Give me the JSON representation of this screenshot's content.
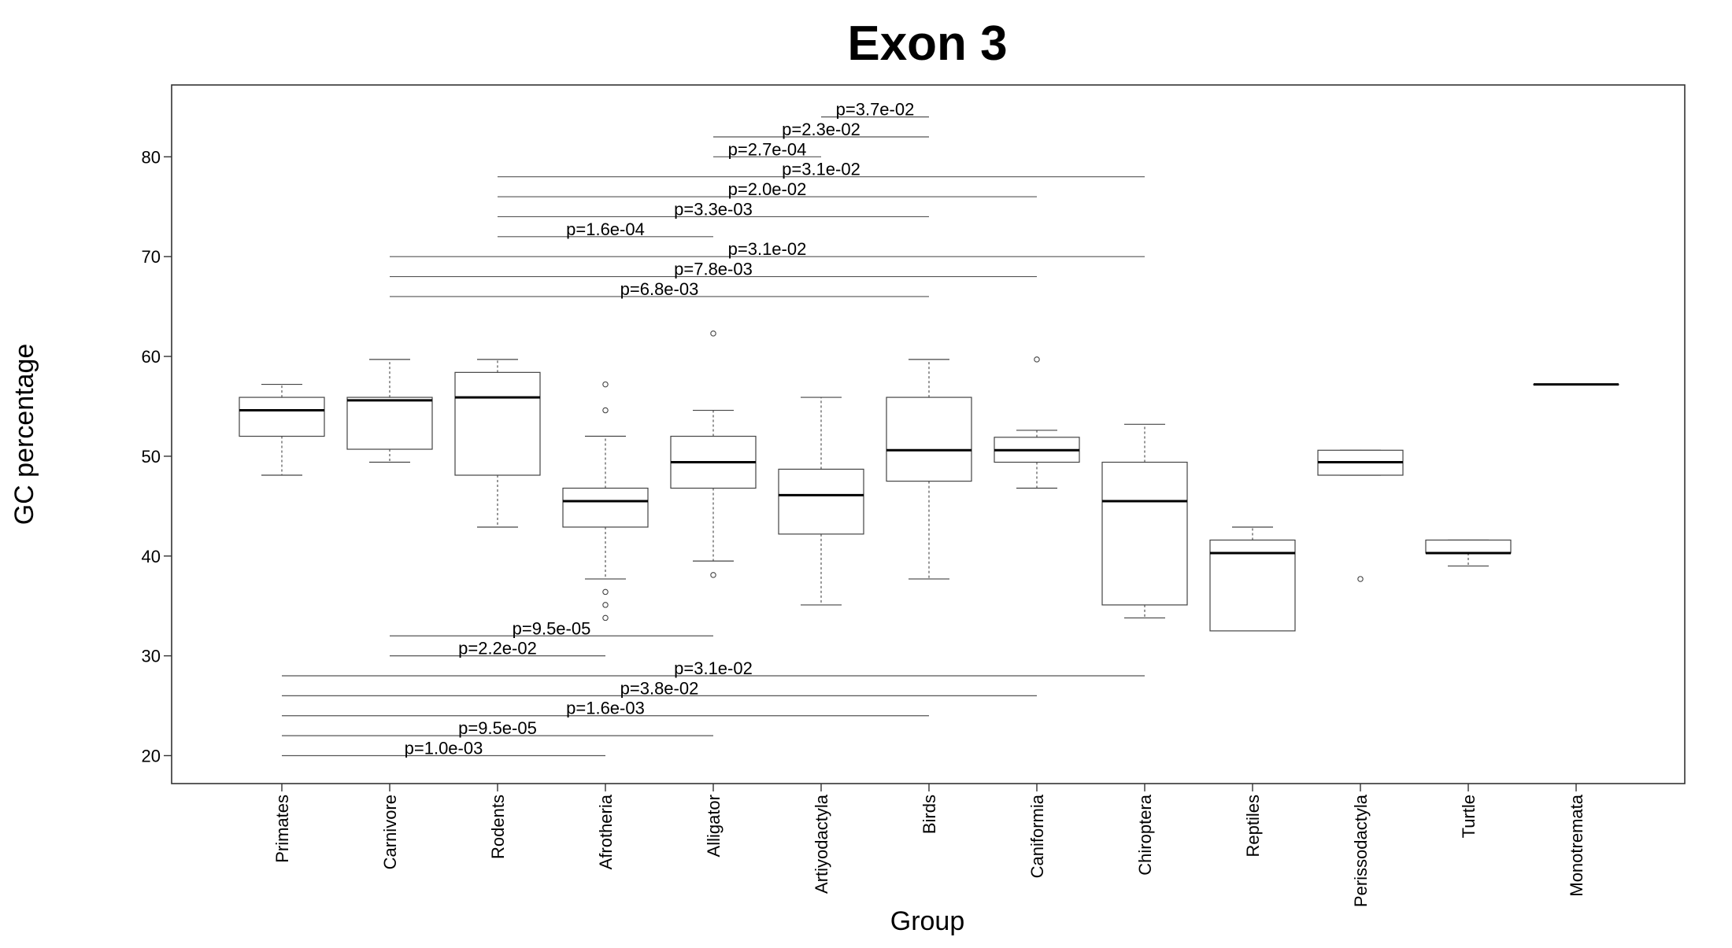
{
  "chart_data": {
    "type": "boxplot",
    "title": "Exon 3",
    "xlabel": "Group",
    "ylabel": "GC percentage",
    "ylim": [
      17.2,
      87.2
    ],
    "yticks": [
      20,
      30,
      40,
      50,
      60,
      70,
      80
    ],
    "grid": false,
    "categories": [
      "Primates",
      "Carnivore",
      "Rodents",
      "Afrotheria",
      "Alligator",
      "Artiyodactyla",
      "Birds",
      "Caniformia",
      "Chiroptera",
      "Reptiles",
      "Perissodactyla",
      "Turtle",
      "Monotremata"
    ],
    "boxes": [
      {
        "group": "Primates",
        "min": 48.1,
        "q1": 52.0,
        "median": 54.6,
        "q3": 55.9,
        "max": 57.2,
        "outliers": []
      },
      {
        "group": "Carnivore",
        "min": 49.4,
        "q1": 50.7,
        "median": 55.6,
        "q3": 55.9,
        "max": 59.7,
        "outliers": []
      },
      {
        "group": "Rodents",
        "min": 42.9,
        "q1": 48.1,
        "median": 55.9,
        "q3": 58.4,
        "max": 59.7,
        "outliers": []
      },
      {
        "group": "Afrotheria",
        "min": 37.7,
        "q1": 42.9,
        "median": 45.5,
        "q3": 46.8,
        "max": 52.0,
        "outliers": [
          57.2,
          54.6,
          36.4,
          35.1,
          33.8
        ]
      },
      {
        "group": "Alligator",
        "min": 39.5,
        "q1": 46.8,
        "median": 49.4,
        "q3": 52.0,
        "max": 54.6,
        "outliers": [
          62.3,
          38.1
        ]
      },
      {
        "group": "Artiyodactyla",
        "min": 35.1,
        "q1": 42.2,
        "median": 46.1,
        "q3": 48.7,
        "max": 55.9,
        "outliers": []
      },
      {
        "group": "Birds",
        "min": 37.7,
        "q1": 47.5,
        "median": 50.6,
        "q3": 55.9,
        "max": 59.7,
        "outliers": []
      },
      {
        "group": "Caniformia",
        "min": 46.8,
        "q1": 49.4,
        "median": 50.6,
        "q3": 51.9,
        "max": 52.6,
        "outliers": [
          59.7
        ]
      },
      {
        "group": "Chiroptera",
        "min": 33.8,
        "q1": 35.1,
        "median": 45.5,
        "q3": 49.4,
        "max": 53.2,
        "outliers": []
      },
      {
        "group": "Reptiles",
        "min": 32.5,
        "q1": 32.5,
        "median": 40.3,
        "q3": 41.6,
        "max": 42.9,
        "outliers": []
      },
      {
        "group": "Perissodactyla",
        "min": 48.1,
        "q1": 48.1,
        "median": 49.4,
        "q3": 50.6,
        "max": 50.6,
        "outliers": [
          37.7
        ]
      },
      {
        "group": "Turtle",
        "min": 39.0,
        "q1": 40.3,
        "median": 40.3,
        "q3": 41.6,
        "max": 41.6,
        "outliers": []
      },
      {
        "group": "Monotremata",
        "min": 57.2,
        "q1": 57.2,
        "median": 57.2,
        "q3": 57.2,
        "max": 57.2,
        "outliers": []
      }
    ],
    "comparisons": [
      {
        "from": "Artiyodactyla",
        "to": "Birds",
        "y": 84,
        "label": "p=3.7e-02"
      },
      {
        "from": "Alligator",
        "to": "Birds",
        "y": 82,
        "label": "p=2.3e-02"
      },
      {
        "from": "Alligator",
        "to": "Artiyodactyla",
        "y": 80,
        "label": "p=2.7e-04"
      },
      {
        "from": "Rodents",
        "to": "Chiroptera",
        "y": 78,
        "label": "p=3.1e-02"
      },
      {
        "from": "Rodents",
        "to": "Caniformia",
        "y": 76,
        "label": "p=2.0e-02"
      },
      {
        "from": "Rodents",
        "to": "Birds",
        "y": 74,
        "label": "p=3.3e-03"
      },
      {
        "from": "Rodents",
        "to": "Alligator",
        "y": 72,
        "label": "p=1.6e-04"
      },
      {
        "from": "Carnivore",
        "to": "Chiroptera",
        "y": 70,
        "label": "p=3.1e-02"
      },
      {
        "from": "Carnivore",
        "to": "Caniformia",
        "y": 68,
        "label": "p=7.8e-03"
      },
      {
        "from": "Carnivore",
        "to": "Birds",
        "y": 66,
        "label": "p=6.8e-03"
      },
      {
        "from": "Carnivore",
        "to": "Alligator",
        "y": 32,
        "label": "p=9.5e-05"
      },
      {
        "from": "Carnivore",
        "to": "Afrotheria",
        "y": 30,
        "label": "p=2.2e-02"
      },
      {
        "from": "Primates",
        "to": "Chiroptera",
        "y": 28,
        "label": "p=3.1e-02"
      },
      {
        "from": "Primates",
        "to": "Caniformia",
        "y": 26,
        "label": "p=3.8e-02"
      },
      {
        "from": "Primates",
        "to": "Birds",
        "y": 24,
        "label": "p=1.6e-03"
      },
      {
        "from": "Primates",
        "to": "Alligator",
        "y": 22,
        "label": "p=9.5e-05"
      },
      {
        "from": "Primates",
        "to": "Afrotheria",
        "y": 20,
        "label": "p=1.0e-03"
      }
    ]
  }
}
